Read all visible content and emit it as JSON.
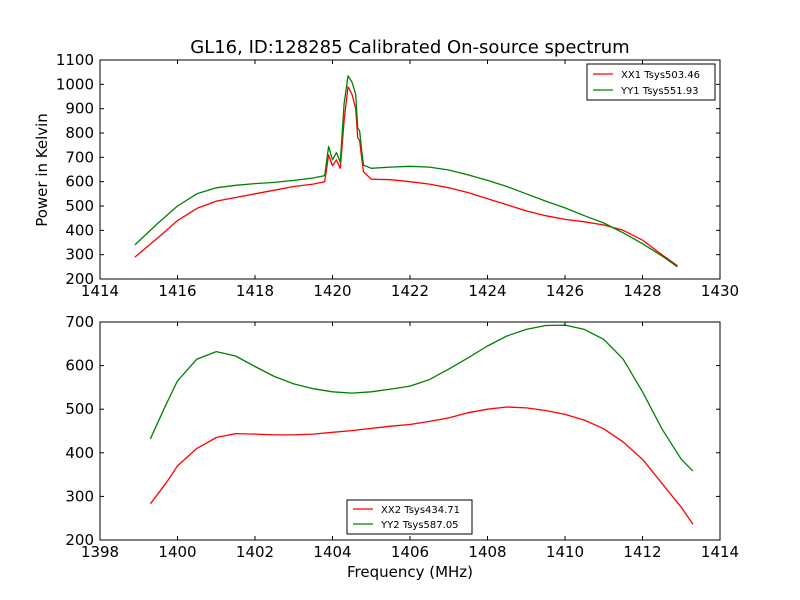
{
  "figure": {
    "title": "GL16, ID:128285 Calibrated On-source spectrum"
  },
  "colors": {
    "red": "#ff0000",
    "green": "#008000",
    "axis": "#000000"
  },
  "chart_data": [
    {
      "type": "line",
      "title": "GL16, ID:128285 Calibrated On-source spectrum",
      "xlabel": "",
      "ylabel": "Power in Kelvin",
      "xlim": [
        1414,
        1430
      ],
      "ylim": [
        200,
        1100
      ],
      "xticks": [
        1414,
        1416,
        1418,
        1420,
        1422,
        1424,
        1426,
        1428,
        1430
      ],
      "yticks": [
        200,
        300,
        400,
        500,
        600,
        700,
        800,
        900,
        1000,
        1100
      ],
      "legend_position": "top-right",
      "series": [
        {
          "name": "XX1 Tsys503.46",
          "color": "#ff0000",
          "x": [
            1414.9,
            1415.5,
            1416,
            1416.5,
            1417,
            1417.5,
            1418,
            1418.5,
            1419,
            1419.5,
            1419.8,
            1419.9,
            1420.0,
            1420.1,
            1420.2,
            1420.3,
            1420.4,
            1420.5,
            1420.6,
            1420.65,
            1420.7,
            1420.75,
            1420.8,
            1421,
            1421.5,
            1422,
            1422.5,
            1423,
            1423.5,
            1424,
            1424.5,
            1425,
            1425.5,
            1426,
            1426.5,
            1427,
            1427.5,
            1428,
            1428.5,
            1428.9
          ],
          "y": [
            290,
            370,
            440,
            490,
            520,
            535,
            550,
            565,
            580,
            590,
            600,
            710,
            665,
            690,
            655,
            850,
            990,
            960,
            900,
            780,
            770,
            700,
            640,
            610,
            608,
            600,
            590,
            575,
            555,
            530,
            505,
            480,
            460,
            445,
            435,
            422,
            400,
            360,
            300,
            255
          ]
        },
        {
          "name": "YY1 Tsys551.93",
          "color": "#008000",
          "x": [
            1414.9,
            1415.5,
            1416,
            1416.5,
            1417,
            1417.5,
            1418,
            1418.5,
            1419,
            1419.5,
            1419.8,
            1419.9,
            1420.0,
            1420.1,
            1420.2,
            1420.3,
            1420.4,
            1420.5,
            1420.6,
            1420.65,
            1420.7,
            1420.75,
            1420.8,
            1421,
            1421.5,
            1422,
            1422.5,
            1423,
            1423.5,
            1424,
            1424.5,
            1425,
            1425.5,
            1426,
            1426.5,
            1427,
            1427.5,
            1428,
            1428.5,
            1428.9
          ],
          "y": [
            340,
            430,
            500,
            550,
            575,
            585,
            592,
            597,
            605,
            615,
            625,
            745,
            690,
            720,
            680,
            920,
            1035,
            1010,
            960,
            820,
            810,
            730,
            668,
            655,
            660,
            663,
            660,
            648,
            628,
            605,
            580,
            550,
            520,
            492,
            460,
            430,
            390,
            345,
            295,
            250
          ]
        }
      ]
    },
    {
      "type": "line",
      "title": "",
      "xlabel": "Frequency (MHz)",
      "ylabel": "",
      "xlim": [
        1398,
        1414
      ],
      "ylim": [
        200,
        700
      ],
      "xticks": [
        1398,
        1400,
        1402,
        1404,
        1406,
        1408,
        1410,
        1412,
        1414
      ],
      "yticks": [
        200,
        300,
        400,
        500,
        600,
        700
      ],
      "legend_position": "bottom-center",
      "series": [
        {
          "name": "XX2 Tsys434.71",
          "color": "#ff0000",
          "x": [
            1399.3,
            1399.7,
            1400,
            1400.5,
            1401,
            1401.5,
            1402,
            1402.5,
            1403,
            1403.5,
            1404,
            1404.5,
            1405,
            1405.5,
            1406,
            1406.5,
            1407,
            1407.5,
            1408,
            1408.5,
            1409,
            1409.5,
            1410,
            1410.5,
            1411,
            1411.5,
            1412,
            1412.5,
            1413,
            1413.3
          ],
          "y": [
            283,
            330,
            370,
            410,
            435,
            444,
            443,
            441,
            441,
            443,
            447,
            451,
            456,
            461,
            465,
            472,
            480,
            492,
            500,
            505,
            503,
            497,
            488,
            475,
            455,
            425,
            385,
            330,
            275,
            236
          ]
        },
        {
          "name": "YY2 Tsys587.05",
          "color": "#008000",
          "x": [
            1399.3,
            1399.7,
            1400,
            1400.5,
            1401,
            1401.5,
            1402,
            1402.5,
            1403,
            1403.5,
            1404,
            1404.5,
            1405,
            1405.5,
            1406,
            1406.5,
            1407,
            1407.5,
            1408,
            1408.5,
            1409,
            1409.5,
            1410,
            1410.5,
            1411,
            1411.5,
            1412,
            1412.5,
            1413,
            1413.3
          ],
          "y": [
            432,
            510,
            565,
            615,
            632,
            622,
            598,
            575,
            558,
            547,
            540,
            537,
            540,
            546,
            553,
            568,
            592,
            618,
            645,
            668,
            683,
            692,
            693,
            683,
            660,
            615,
            540,
            455,
            385,
            358
          ]
        }
      ]
    }
  ]
}
